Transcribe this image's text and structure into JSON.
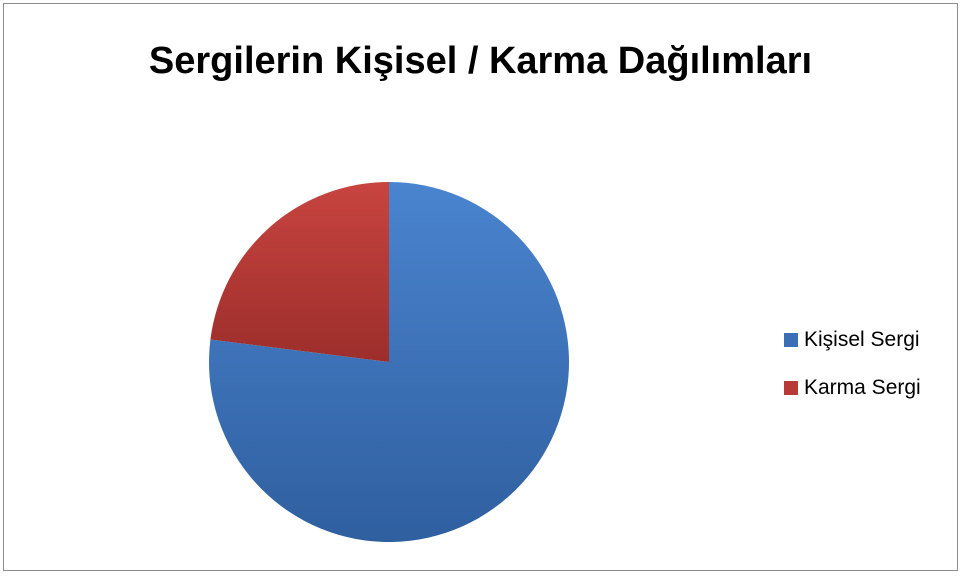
{
  "chart_data": {
    "type": "pie",
    "title": "Sergilerin Kişisel / Karma Dağılımları",
    "categories": [
      "Kişisel Sergi",
      "Karma Sergi"
    ],
    "values": [
      77,
      23
    ],
    "colors": [
      "#3a6fb8",
      "#b83a36"
    ],
    "legend": "right"
  }
}
